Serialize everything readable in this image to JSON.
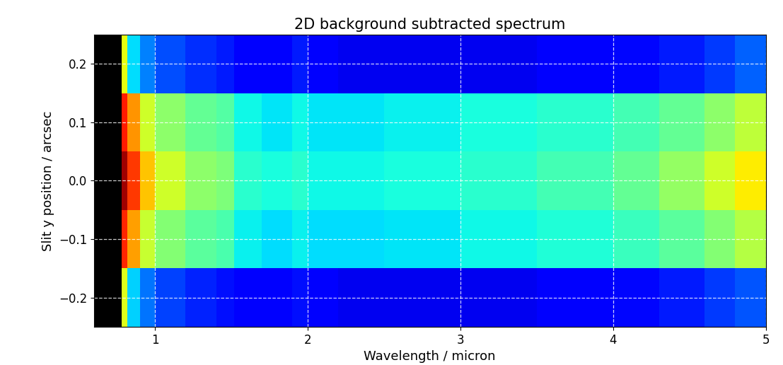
{
  "chart_data": {
    "type": "heatmap",
    "title": "2D background subtracted spectrum",
    "x_label": "Wavelength / micron",
    "y_label": "Slit y position / arcsec",
    "x_edges": [
      0.6,
      0.78,
      0.82,
      0.9,
      1.0,
      1.2,
      1.4,
      1.52,
      1.7,
      1.9,
      2.0,
      2.2,
      2.5,
      3.0,
      3.5,
      4.0,
      4.3,
      4.6,
      4.8,
      5.0
    ],
    "y_edges": [
      -0.25,
      -0.15,
      -0.05,
      0.05,
      0.15,
      0.25
    ],
    "cells": [
      [
        null,
        0.62,
        0.33,
        0.24,
        0.19,
        0.16,
        0.14,
        0.12,
        0.12,
        0.14,
        0.11,
        0.1,
        0.1,
        0.1,
        0.11,
        0.13,
        0.15,
        0.18,
        0.21
      ],
      [
        null,
        0.87,
        0.74,
        0.59,
        0.51,
        0.46,
        0.44,
        0.36,
        0.34,
        0.36,
        0.34,
        0.34,
        0.35,
        0.37,
        0.39,
        0.42,
        0.46,
        0.51,
        0.57
      ],
      [
        null,
        0.97,
        0.85,
        0.7,
        0.6,
        0.52,
        0.5,
        0.4,
        0.38,
        0.4,
        0.37,
        0.37,
        0.38,
        0.4,
        0.43,
        0.47,
        0.53,
        0.6,
        0.66
      ],
      [
        null,
        0.88,
        0.75,
        0.6,
        0.52,
        0.47,
        0.45,
        0.37,
        0.35,
        0.37,
        0.35,
        0.35,
        0.36,
        0.38,
        0.4,
        0.43,
        0.47,
        0.52,
        0.58
      ],
      [
        null,
        0.63,
        0.34,
        0.25,
        0.2,
        0.17,
        0.15,
        0.12,
        0.12,
        0.15,
        0.11,
        0.1,
        0.1,
        0.1,
        0.11,
        0.13,
        0.15,
        0.18,
        0.22
      ]
    ],
    "clim": [
      0,
      1
    ],
    "xlim": [
      0.6,
      5.0
    ],
    "xticks": [
      1,
      2,
      3,
      4,
      5
    ],
    "ylim": [
      -0.25,
      0.25
    ],
    "yticks": [
      {
        "value": -0.2,
        "label": "−0.2"
      },
      {
        "value": -0.1,
        "label": "−0.1"
      },
      {
        "value": 0.0,
        "label": "0.0"
      },
      {
        "value": 0.1,
        "label": "0.1"
      },
      {
        "value": 0.2,
        "label": "0.2"
      }
    ],
    "grid": true
  }
}
